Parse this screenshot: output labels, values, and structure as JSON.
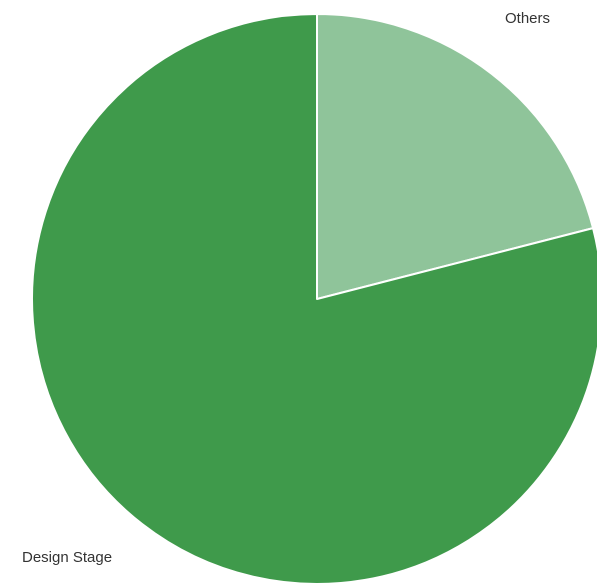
{
  "chart_data": {
    "type": "pie",
    "title": "",
    "slices": [
      {
        "label": "Others",
        "value": 21,
        "color": "#8fc49a"
      },
      {
        "label": "Design Stage",
        "value": 79,
        "color": "#3f9a4b"
      }
    ],
    "start_angle_deg": 0,
    "direction": "clockwise",
    "slice_border_color": "#ffffff",
    "legend": "none"
  }
}
